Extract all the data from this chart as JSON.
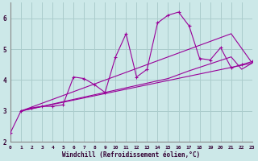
{
  "xlabel": "Windchill (Refroidissement éolien,°C)",
  "ylabel": "",
  "bg_color": "#cce8e8",
  "grid_color": "#aacccc",
  "line_color": "#990099",
  "xlim": [
    0,
    23
  ],
  "ylim": [
    2,
    6.5
  ],
  "xticks": [
    0,
    1,
    2,
    3,
    4,
    5,
    6,
    7,
    8,
    9,
    10,
    11,
    12,
    13,
    14,
    15,
    16,
    17,
    18,
    19,
    20,
    21,
    22,
    23
  ],
  "yticks": [
    2,
    3,
    4,
    5,
    6
  ],
  "series_jagged": {
    "x": [
      0,
      1,
      2,
      3,
      4,
      5,
      6,
      7,
      8,
      9,
      10,
      11,
      12,
      13,
      14,
      15,
      16,
      17,
      18,
      19,
      20,
      21,
      22,
      23
    ],
    "y": [
      2.3,
      3.0,
      3.1,
      3.15,
      3.15,
      3.2,
      4.1,
      4.05,
      3.85,
      3.6,
      4.75,
      5.5,
      4.1,
      4.35,
      5.85,
      6.1,
      6.2,
      5.75,
      4.7,
      4.65,
      5.05,
      4.4,
      4.5,
      4.6
    ]
  },
  "series_trend": [
    {
      "x": [
        1,
        23
      ],
      "y": [
        3.0,
        4.55
      ]
    },
    {
      "x": [
        1,
        21,
        23
      ],
      "y": [
        3.0,
        5.5,
        4.55
      ]
    },
    {
      "x": [
        1,
        15,
        17,
        21,
        22,
        23
      ],
      "y": [
        3.0,
        4.05,
        4.3,
        4.75,
        4.35,
        4.55
      ]
    }
  ]
}
